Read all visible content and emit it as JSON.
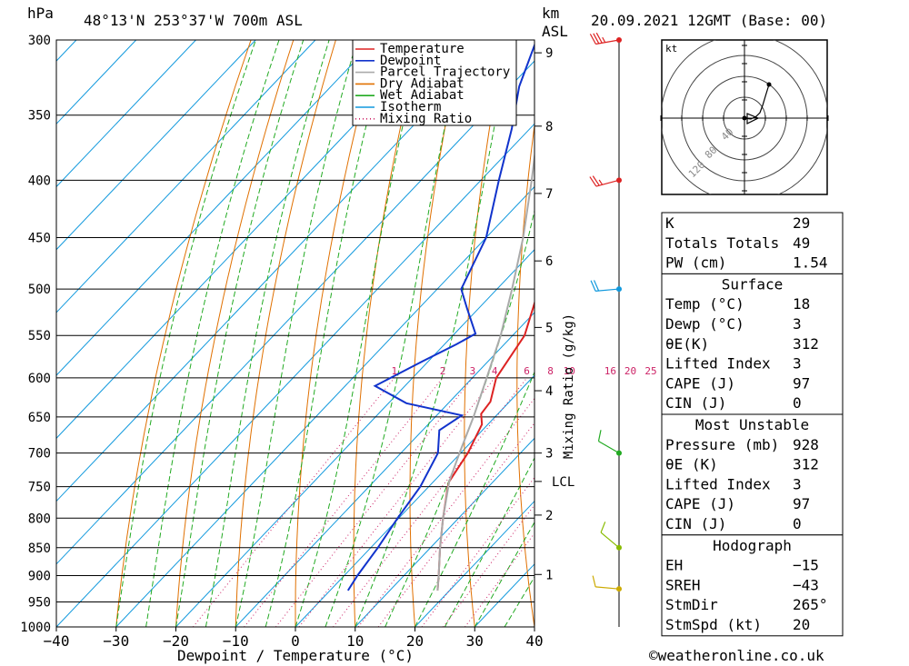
{
  "header": {
    "unit_hpa": "hPa",
    "location": "48°13'N  253°37'W  700m  ASL",
    "unit_km": "km",
    "unit_asl": "ASL",
    "datetime": "20.09.2021  12GMT  (Base: 00)"
  },
  "chart_data": {
    "type": "skewt",
    "xlabel": "Dewpoint / Temperature (°C)",
    "ylabel_left": "hPa",
    "ylabel_right": "Mixing Ratio (g/kg)",
    "x_ticks": [
      "−40",
      "−30",
      "−20",
      "−10",
      "0",
      "10",
      "20",
      "30",
      "40"
    ],
    "p_ticks": [
      "300",
      "350",
      "400",
      "450",
      "500",
      "550",
      "600",
      "650",
      "700",
      "750",
      "800",
      "850",
      "900",
      "950",
      "1000"
    ],
    "km_ticks": [
      {
        "label": "9",
        "p": 308
      },
      {
        "label": "8",
        "p": 358
      },
      {
        "label": "7",
        "p": 411
      },
      {
        "label": "6",
        "p": 472
      },
      {
        "label": "5",
        "p": 541
      },
      {
        "label": "4",
        "p": 616
      },
      {
        "label": "3",
        "p": 700
      },
      {
        "label": "2",
        "p": 795
      },
      {
        "label": "1",
        "p": 898
      }
    ],
    "lcl": {
      "label": "LCL",
      "p": 742
    },
    "mixing_ratio_labels": [
      "1",
      "2",
      "3",
      "4",
      "6",
      "8",
      "10",
      "16",
      "20",
      "25"
    ],
    "legend": [
      {
        "name": "Temperature",
        "color": "#dd2222"
      },
      {
        "name": "Dewpoint",
        "color": "#1133cc"
      },
      {
        "name": "Parcel Trajectory",
        "color": "#aaaaaa"
      },
      {
        "name": "Dry Adiabat",
        "color": "#e07000"
      },
      {
        "name": "Wet Adiabat",
        "color": "#22aa22"
      },
      {
        "name": "Isotherm",
        "color": "#1199dd"
      },
      {
        "name": "Mixing Ratio",
        "color": "#cc2266",
        "dotted": true
      }
    ],
    "series": [
      {
        "name": "Temperature",
        "color": "#dd2222",
        "points": [
          [
            928,
            18
          ],
          [
            900,
            15.8
          ],
          [
            850,
            11.6
          ],
          [
            800,
            7.4
          ],
          [
            750,
            3.2
          ],
          [
            742,
            2.6
          ],
          [
            700,
            1.2
          ],
          [
            660,
            -1
          ],
          [
            646,
            -2.8
          ],
          [
            630,
            -3.2
          ],
          [
            600,
            -6
          ],
          [
            550,
            -8
          ],
          [
            500,
            -13
          ],
          [
            450,
            -18
          ],
          [
            400,
            -23
          ],
          [
            350,
            -31
          ],
          [
            320,
            -37
          ],
          [
            300,
            -41
          ]
        ]
      },
      {
        "name": "Dewpoint",
        "color": "#1133cc",
        "points": [
          [
            928,
            3
          ],
          [
            900,
            2.2
          ],
          [
            850,
            1.2
          ],
          [
            800,
            -0.2
          ],
          [
            750,
            -1.4
          ],
          [
            700,
            -3.8
          ],
          [
            668,
            -7.2
          ],
          [
            648,
            -5.8
          ],
          [
            632,
            -17
          ],
          [
            610,
            -25
          ],
          [
            580,
            -21
          ],
          [
            560,
            -18
          ],
          [
            548,
            -16.5
          ],
          [
            520,
            -22
          ],
          [
            500,
            -26
          ],
          [
            450,
            -30
          ],
          [
            400,
            -37
          ],
          [
            360,
            -43
          ],
          [
            330,
            -48.5
          ],
          [
            300,
            -53
          ]
        ]
      },
      {
        "name": "Parcel Trajectory",
        "color": "#aaaaaa",
        "points": [
          [
            928,
            18
          ],
          [
            900,
            15.8
          ],
          [
            850,
            11.6
          ],
          [
            800,
            7.4
          ],
          [
            742,
            2.6
          ],
          [
            700,
            -0.2
          ],
          [
            650,
            -3.6
          ],
          [
            600,
            -7.6
          ],
          [
            550,
            -12
          ],
          [
            500,
            -17.5
          ],
          [
            450,
            -23.8
          ],
          [
            400,
            -31.5
          ],
          [
            350,
            -40.5
          ],
          [
            300,
            -51
          ]
        ]
      }
    ],
    "hodograph": {
      "unit": "kt",
      "ring_labels": [
        "40",
        "80",
        "120"
      ]
    },
    "wind_barbs": [
      {
        "p": 300,
        "dir": 260,
        "kt": 35,
        "color": "#dd2222"
      },
      {
        "p": 400,
        "dir": 255,
        "kt": 25,
        "color": "#dd2222"
      },
      {
        "p": 500,
        "dir": 265,
        "kt": 20,
        "color": "#1199dd"
      },
      {
        "p": 700,
        "dir": 300,
        "kt": 10,
        "color": "#22aa22"
      },
      {
        "p": 850,
        "dir": 310,
        "kt": 10,
        "color": "#88bb00"
      },
      {
        "p": 925,
        "dir": 275,
        "kt": 10,
        "color": "#ccaa00"
      }
    ]
  },
  "indices": {
    "general": [
      {
        "label": "K",
        "value": "29"
      },
      {
        "label": "Totals Totals",
        "value": "49"
      },
      {
        "label": "PW (cm)",
        "value": "1.54"
      }
    ],
    "surface": {
      "title": "Surface",
      "rows": [
        {
          "label": "Temp (°C)",
          "value": "18"
        },
        {
          "label": "Dewp (°C)",
          "value": "3"
        },
        {
          "label": "θE(K)",
          "value": "312"
        },
        {
          "label": "Lifted Index",
          "value": "3"
        },
        {
          "label": "CAPE (J)",
          "value": "97"
        },
        {
          "label": "CIN (J)",
          "value": "0"
        }
      ]
    },
    "most_unstable": {
      "title": "Most Unstable",
      "rows": [
        {
          "label": "Pressure (mb)",
          "value": "928"
        },
        {
          "label": "θE (K)",
          "value": "312"
        },
        {
          "label": "Lifted Index",
          "value": "3"
        },
        {
          "label": "CAPE (J)",
          "value": "97"
        },
        {
          "label": "CIN (J)",
          "value": "0"
        }
      ]
    },
    "hodograph": {
      "title": "Hodograph",
      "rows": [
        {
          "label": "EH",
          "value": "−15"
        },
        {
          "label": "SREH",
          "value": "−43"
        },
        {
          "label": "StmDir",
          "value": "265°"
        },
        {
          "label": "StmSpd (kt)",
          "value": "20"
        }
      ]
    }
  },
  "footer": {
    "credit": "©weatheronline.co.uk"
  }
}
